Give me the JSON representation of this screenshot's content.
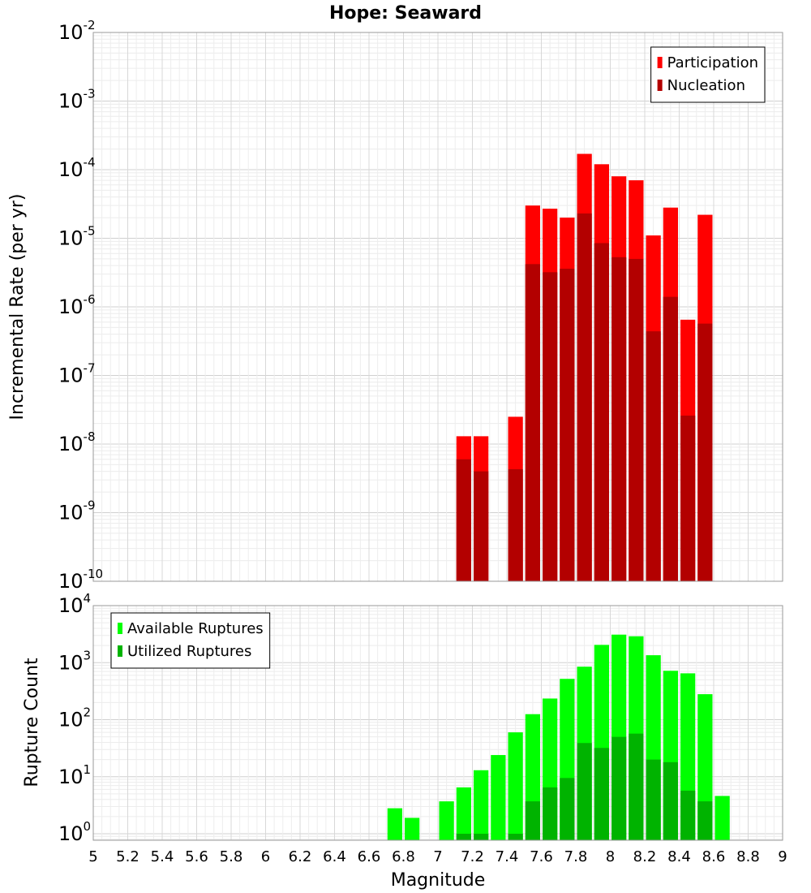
{
  "chart_data": [
    {
      "type": "bar",
      "title": "Hope: Seaward",
      "xlabel": "",
      "ylabel": "Incremental Rate (per yr)",
      "yscale": "log",
      "xlim": [
        5,
        9
      ],
      "ylim": [
        1e-10,
        0.01
      ],
      "grid": true,
      "legend_position": "top-right",
      "bar_width": 0.1,
      "series": [
        {
          "name": "Participation",
          "color": "#ff0000",
          "x": [
            7.15,
            7.25,
            7.45,
            7.55,
            7.65,
            7.75,
            7.85,
            7.95,
            8.05,
            8.15,
            8.25,
            8.35,
            8.45,
            8.55
          ],
          "values": [
            1.3e-08,
            1.3e-08,
            2.5e-08,
            3e-05,
            2.7e-05,
            2e-05,
            0.00017,
            0.00012,
            8e-05,
            7e-05,
            1.1e-05,
            2.8e-05,
            6.5e-07,
            2.2e-05
          ]
        },
        {
          "name": "Nucleation",
          "color": "#b30000",
          "x": [
            7.15,
            7.25,
            7.45,
            7.55,
            7.65,
            7.75,
            7.85,
            7.95,
            8.05,
            8.15,
            8.25,
            8.35,
            8.45,
            8.55
          ],
          "values": [
            6e-09,
            4e-09,
            4.3e-09,
            4.2e-06,
            3.2e-06,
            3.6e-06,
            2.3e-05,
            8.5e-06,
            5.3e-06,
            5e-06,
            4.4e-07,
            1.4e-06,
            2.6e-08,
            5.7e-07
          ]
        }
      ]
    },
    {
      "type": "bar",
      "title": "",
      "xlabel": "Magnitude",
      "ylabel": "Rupture Count",
      "yscale": "log",
      "xlim": [
        5,
        9
      ],
      "ylim": [
        0.77,
        10000
      ],
      "grid": true,
      "legend_position": "top-left",
      "bar_width": 0.1,
      "x_ticks": [
        "5",
        "5.2",
        "5.4",
        "5.6",
        "5.8",
        "6",
        "6.2",
        "6.4",
        "6.6",
        "6.8",
        "7",
        "7.2",
        "7.4",
        "7.6",
        "7.8",
        "8",
        "8.2",
        "8.4",
        "8.6",
        "8.8",
        "9"
      ],
      "series": [
        {
          "name": "Available Ruptures",
          "color": "#00ff00",
          "x": [
            6.75,
            6.85,
            7.05,
            7.15,
            7.25,
            7.35,
            7.45,
            7.55,
            7.65,
            7.75,
            7.85,
            7.95,
            8.05,
            8.15,
            8.25,
            8.35,
            8.45,
            8.55,
            8.65
          ],
          "values": [
            2.8,
            1.9,
            3.7,
            6.5,
            13,
            24,
            60,
            125,
            235,
            520,
            850,
            2050,
            3100,
            2900,
            1350,
            720,
            650,
            280,
            4.6
          ]
        },
        {
          "name": "Utilized Ruptures",
          "color": "#00b300",
          "x": [
            7.15,
            7.25,
            7.45,
            7.55,
            7.65,
            7.75,
            7.85,
            7.95,
            8.05,
            8.15,
            8.25,
            8.35,
            8.45,
            8.55
          ],
          "values": [
            1,
            1,
            1,
            3.7,
            6.5,
            9.5,
            39,
            32,
            50,
            57,
            20,
            18,
            5.7,
            3.7
          ]
        }
      ]
    }
  ]
}
